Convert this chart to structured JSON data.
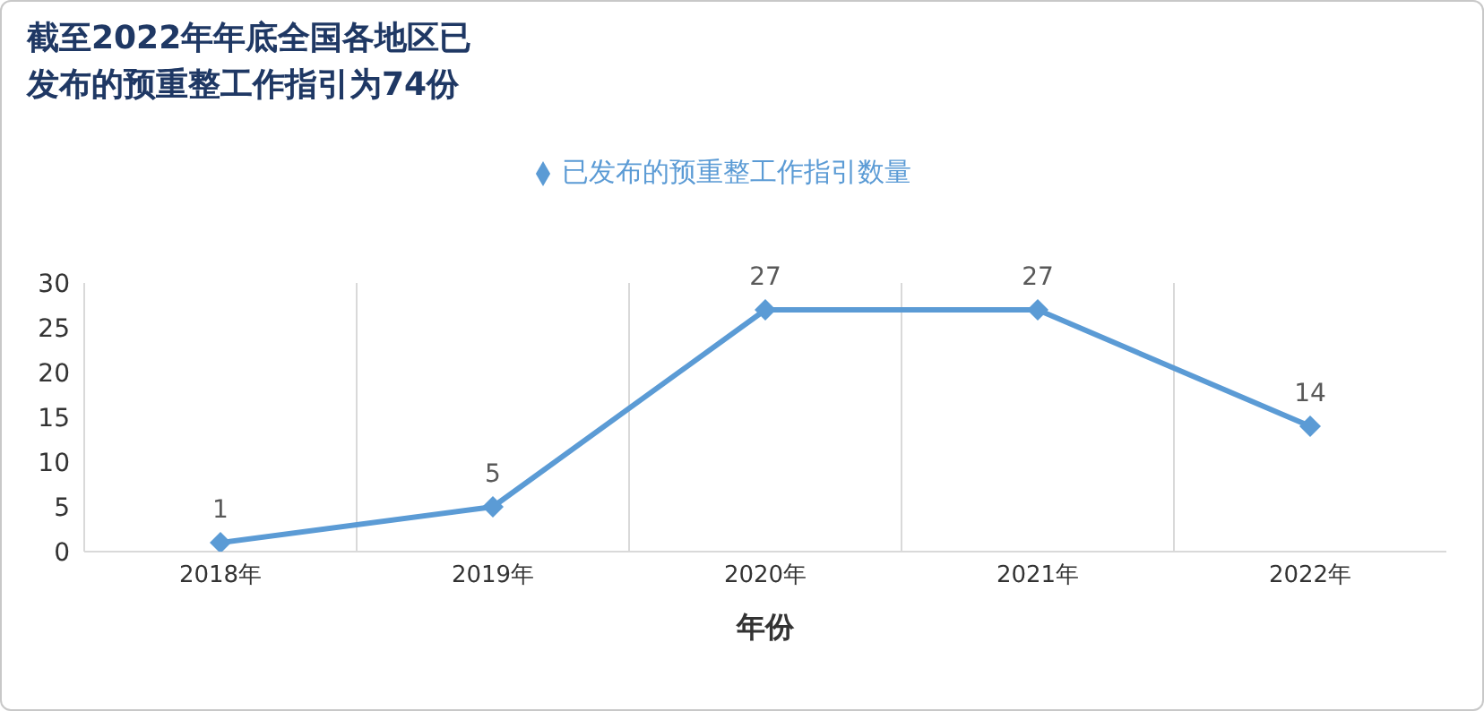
{
  "chart_data": {
    "type": "line",
    "title": "截至2022年年底全国各地区已发布的预重整工作指引为74份",
    "xlabel": "年份",
    "categories": [
      "2018年",
      "2019年",
      "2020年",
      "2021年",
      "2022年"
    ],
    "series": [
      {
        "name": "已发布的预重整工作指引数量",
        "color": "#5b9bd5",
        "values": [
          1,
          5,
          27,
          27,
          14
        ]
      }
    ],
    "ylim": [
      0,
      30
    ],
    "yticks": [
      0,
      5,
      10,
      15,
      20,
      25,
      30
    ],
    "grid": "x",
    "legend": "top",
    "marker": "diamond",
    "line_style": "solid",
    "data_labels": true
  }
}
